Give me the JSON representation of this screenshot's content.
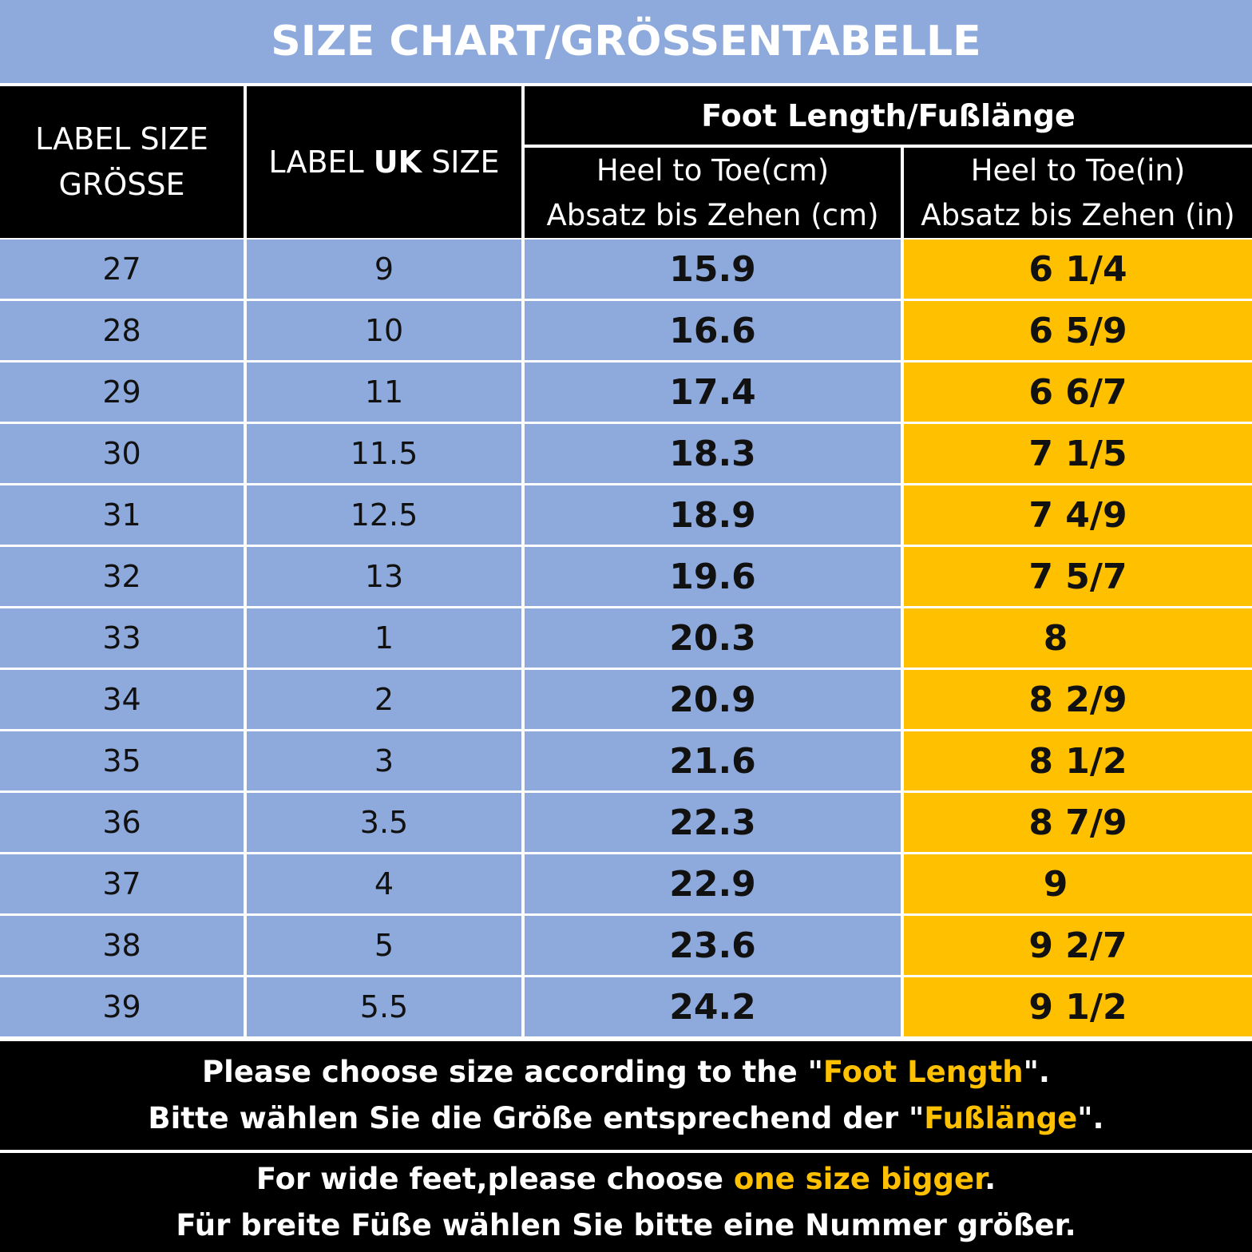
{
  "title": "SIZE CHART/GRÖSSENTABELLE",
  "header": {
    "label_size_line1": "LABEL SIZE",
    "label_size_line2": "GRÖSSE",
    "uk_prefix": "LABEL ",
    "uk_bold": "UK",
    "uk_suffix": " SIZE",
    "foot_length": "Foot Length/Fußlänge",
    "cm_line1": "Heel to Toe(cm)",
    "cm_line2": "Absatz bis Zehen (cm)",
    "in_line1": "Heel to Toe(in)",
    "in_line2": "Absatz bis Zehen (in)"
  },
  "rows": [
    {
      "label": "27",
      "uk": "9",
      "cm": "15.9",
      "in": "6 1/4"
    },
    {
      "label": "28",
      "uk": "10",
      "cm": "16.6",
      "in": "6 5/9"
    },
    {
      "label": "29",
      "uk": "11",
      "cm": "17.4",
      "in": "6 6/7"
    },
    {
      "label": "30",
      "uk": "11.5",
      "cm": "18.3",
      "in": "7 1/5"
    },
    {
      "label": "31",
      "uk": "12.5",
      "cm": "18.9",
      "in": "7 4/9"
    },
    {
      "label": "32",
      "uk": "13",
      "cm": "19.6",
      "in": "7 5/7"
    },
    {
      "label": "33",
      "uk": "1",
      "cm": "20.3",
      "in": "8"
    },
    {
      "label": "34",
      "uk": "2",
      "cm": "20.9",
      "in": "8 2/9"
    },
    {
      "label": "35",
      "uk": "3",
      "cm": "21.6",
      "in": "8 1/2"
    },
    {
      "label": "36",
      "uk": "3.5",
      "cm": "22.3",
      "in": "8 7/9"
    },
    {
      "label": "37",
      "uk": "4",
      "cm": "22.9",
      "in": "9"
    },
    {
      "label": "38",
      "uk": "5",
      "cm": "23.6",
      "in": "9 2/7"
    },
    {
      "label": "39",
      "uk": "5.5",
      "cm": "24.2",
      "in": "9 1/2"
    }
  ],
  "note_foot_length": {
    "en_prefix": "Please choose size according to the \"",
    "en_highlight": "Foot Length",
    "en_suffix": "\".",
    "de_prefix": "Bitte wählen Sie die Größe entsprechend der \"",
    "de_highlight": "Fußlänge",
    "de_suffix": "\"."
  },
  "note_wide_feet": {
    "en_prefix": "For wide feet,please choose ",
    "en_highlight": "one size bigger",
    "en_suffix": ".",
    "de_line": "Für breite Füße wählen Sie bitte eine Nummer größer."
  },
  "colors": {
    "blue_fill": "#8eaadc",
    "gold_fill": "#ffc000",
    "header_black": "#000000"
  }
}
